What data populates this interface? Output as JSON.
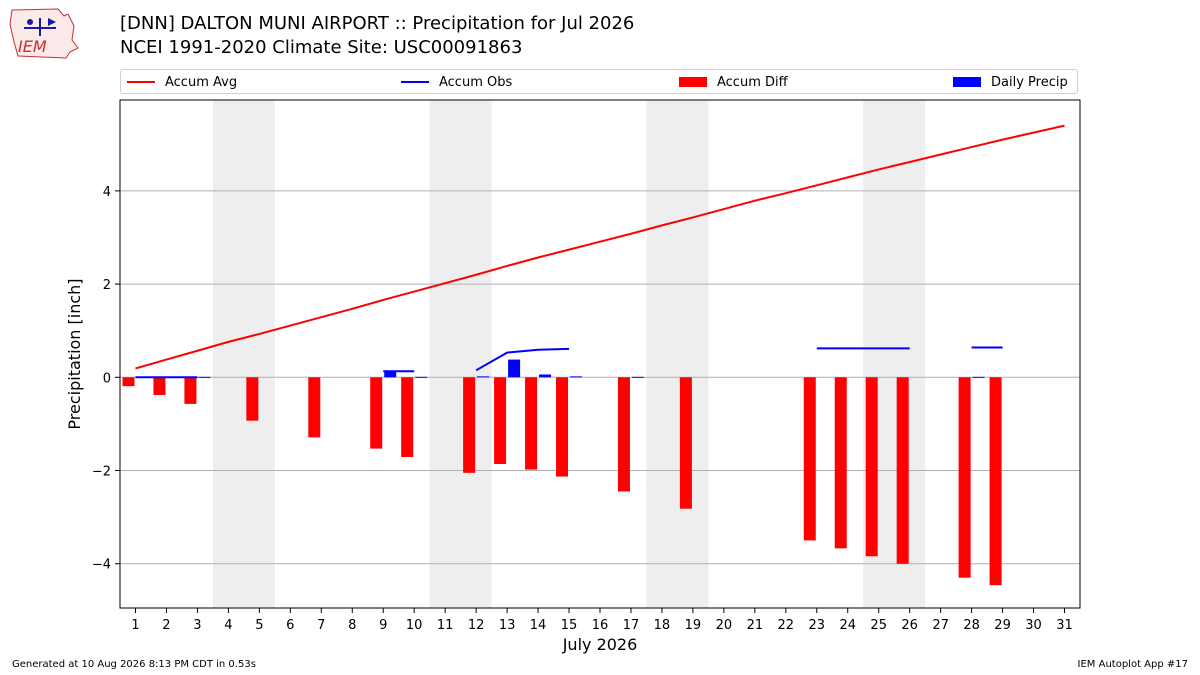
{
  "header": {
    "title": "[DNN] DALTON MUNI AIRPORT :: Precipitation for Jul 2026",
    "subtitle": "NCEI 1991-2020 Climate Site: USC00091863",
    "logo_text": "IEM"
  },
  "footer": {
    "generated": "Generated at 10 Aug 2026 8:13 PM CDT in 0.53s",
    "app": "IEM Autoplot App #17"
  },
  "chart_data": {
    "type": "bar",
    "title": "[DNN] DALTON MUNI AIRPORT :: Precipitation for Jul 2026",
    "xlabel": "July 2026",
    "ylabel": "Precipitation [inch]",
    "xlim": [
      0.5,
      31.5
    ],
    "ylim": [
      -4.95,
      5.95
    ],
    "x_ticks": [
      1,
      2,
      3,
      4,
      5,
      6,
      7,
      8,
      9,
      10,
      11,
      12,
      13,
      14,
      15,
      16,
      17,
      18,
      19,
      20,
      21,
      22,
      23,
      24,
      25,
      26,
      27,
      28,
      29,
      30,
      31
    ],
    "y_ticks": [
      -4,
      -2,
      0,
      2,
      4
    ],
    "y_tick_labels": [
      "−4",
      "−2",
      "0",
      "2",
      "4"
    ],
    "grid": "horizontal",
    "legend_placement": "top",
    "weekend_shading": [
      [
        3.5,
        5.5
      ],
      [
        10.5,
        12.5
      ],
      [
        17.5,
        19.5
      ],
      [
        24.5,
        26.5
      ]
    ],
    "colors": {
      "accum_avg": "#ff0000",
      "accum_obs": "#0000ff",
      "accum_diff": "#ff0000",
      "daily_precip": "#0000ff",
      "shade": "#eeeeee",
      "grid": "#b0b0b0"
    },
    "series": [
      {
        "name": "Accum Avg",
        "kind": "line",
        "x": [
          1,
          2,
          3,
          4,
          5,
          6,
          7,
          8,
          9,
          10,
          11,
          12,
          13,
          14,
          15,
          16,
          17,
          18,
          19,
          20,
          21,
          22,
          23,
          24,
          25,
          26,
          27,
          28,
          29,
          30,
          31
        ],
        "values": [
          0.19,
          0.38,
          0.57,
          0.76,
          0.93,
          1.11,
          1.29,
          1.47,
          1.66,
          1.84,
          2.02,
          2.2,
          2.39,
          2.57,
          2.74,
          2.91,
          3.08,
          3.26,
          3.43,
          3.61,
          3.79,
          3.95,
          4.12,
          4.29,
          4.46,
          4.62,
          4.78,
          4.94,
          5.1,
          5.25,
          5.4
        ]
      },
      {
        "name": "Accum Obs",
        "kind": "line",
        "segments": [
          {
            "x": [
              1,
              2,
              3
            ],
            "values": [
              0.0,
              0.0,
              0.0
            ]
          },
          {
            "x": [
              9,
              10
            ],
            "values": [
              0.13,
              0.13
            ]
          },
          {
            "x": [
              12,
              13,
              14,
              15
            ],
            "values": [
              0.15,
              0.53,
              0.59,
              0.61
            ]
          },
          {
            "x": [
              23,
              24,
              25,
              26
            ],
            "values": [
              0.62,
              0.62,
              0.62,
              0.62
            ]
          },
          {
            "x": [
              28,
              29
            ],
            "values": [
              0.64,
              0.64
            ]
          }
        ]
      },
      {
        "name": "Accum Diff",
        "kind": "bar",
        "x": [
          1,
          2,
          3,
          5,
          7,
          9,
          10,
          12,
          13,
          14,
          15,
          17,
          19,
          23,
          24,
          25,
          26,
          28,
          29
        ],
        "values": [
          -0.19,
          -0.38,
          -0.57,
          -0.93,
          -1.29,
          -1.53,
          -1.71,
          -2.05,
          -1.86,
          -1.98,
          -2.13,
          -2.45,
          -2.82,
          -3.5,
          -3.67,
          -3.84,
          -4.0,
          -4.3,
          -4.46
        ]
      },
      {
        "name": "Daily Precip",
        "kind": "bar",
        "x": [
          1,
          2,
          3,
          9,
          10,
          12,
          13,
          14,
          15,
          17,
          28
        ],
        "values": [
          0.01,
          0.01,
          0.01,
          0.13,
          0.01,
          0.02,
          0.38,
          0.06,
          0.02,
          0.01,
          0.01
        ]
      }
    ]
  }
}
